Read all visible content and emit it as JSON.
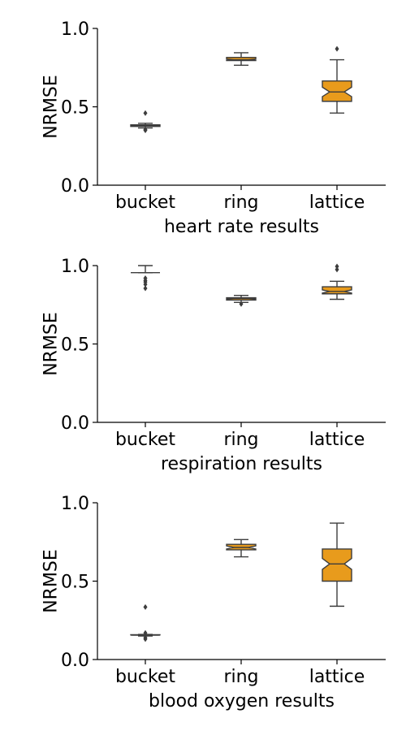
{
  "chart_data": [
    {
      "type": "box",
      "xlabel": "heart rate results",
      "ylabel": "NRMSE",
      "ylim": [
        0,
        1
      ],
      "yticks": [
        "0.0",
        "0.5",
        "1.0"
      ],
      "categories": [
        "bucket",
        "ring",
        "lattice"
      ],
      "box_color": "#e89b1c",
      "boxes": [
        {
          "q1": 0.375,
          "median": 0.38,
          "q3": 0.385,
          "notch_low": 0.378,
          "notch_high": 0.382,
          "whisker_low": 0.365,
          "whisker_high": 0.395,
          "outliers": [
            0.46,
            0.355,
            0.35
          ]
        },
        {
          "q1": 0.795,
          "median": 0.8,
          "q3": 0.815,
          "notch_low": 0.797,
          "notch_high": 0.805,
          "whisker_low": 0.765,
          "whisker_high": 0.845,
          "outliers": []
        },
        {
          "q1": 0.535,
          "median": 0.595,
          "q3": 0.665,
          "notch_low": 0.565,
          "notch_high": 0.625,
          "whisker_low": 0.46,
          "whisker_high": 0.8,
          "outliers": [
            0.87
          ]
        }
      ]
    },
    {
      "type": "box",
      "xlabel": "respiration results",
      "ylabel": "NRMSE",
      "ylim": [
        0,
        1
      ],
      "yticks": [
        "0.0",
        "0.5",
        "1.0"
      ],
      "categories": [
        "bucket",
        "ring",
        "lattice"
      ],
      "box_color": "#e89b1c",
      "boxes": [
        {
          "q1": 0.955,
          "median": 0.955,
          "q3": 0.955,
          "notch_low": 0.955,
          "notch_high": 0.955,
          "whisker_low": 0.955,
          "whisker_high": 1.0,
          "outliers": [
            0.92,
            0.905,
            0.895,
            0.88,
            0.855
          ]
        },
        {
          "q1": 0.78,
          "median": 0.79,
          "q3": 0.795,
          "notch_low": 0.786,
          "notch_high": 0.792,
          "whisker_low": 0.765,
          "whisker_high": 0.81,
          "outliers": [
            0.755
          ]
        },
        {
          "q1": 0.82,
          "median": 0.835,
          "q3": 0.865,
          "notch_low": 0.825,
          "notch_high": 0.845,
          "whisker_low": 0.785,
          "whisker_high": 0.9,
          "outliers": [
            0.995,
            0.975
          ]
        }
      ]
    },
    {
      "type": "box",
      "xlabel": "blood oxygen results",
      "ylabel": "NRMSE",
      "ylim": [
        0,
        1
      ],
      "yticks": [
        "0.0",
        "0.5",
        "1.0"
      ],
      "categories": [
        "bucket",
        "ring",
        "lattice"
      ],
      "box_color": "#e89b1c",
      "boxes": [
        {
          "q1": 0.155,
          "median": 0.155,
          "q3": 0.158,
          "notch_low": 0.155,
          "notch_high": 0.157,
          "whisker_low": 0.15,
          "whisker_high": 0.16,
          "outliers": [
            0.335,
            0.17,
            0.14,
            0.13
          ]
        },
        {
          "q1": 0.7,
          "median": 0.715,
          "q3": 0.735,
          "notch_low": 0.705,
          "notch_high": 0.725,
          "whisker_low": 0.655,
          "whisker_high": 0.765,
          "outliers": []
        },
        {
          "q1": 0.5,
          "median": 0.61,
          "q3": 0.705,
          "notch_low": 0.575,
          "notch_high": 0.645,
          "whisker_low": 0.34,
          "whisker_high": 0.87,
          "outliers": []
        }
      ]
    }
  ]
}
